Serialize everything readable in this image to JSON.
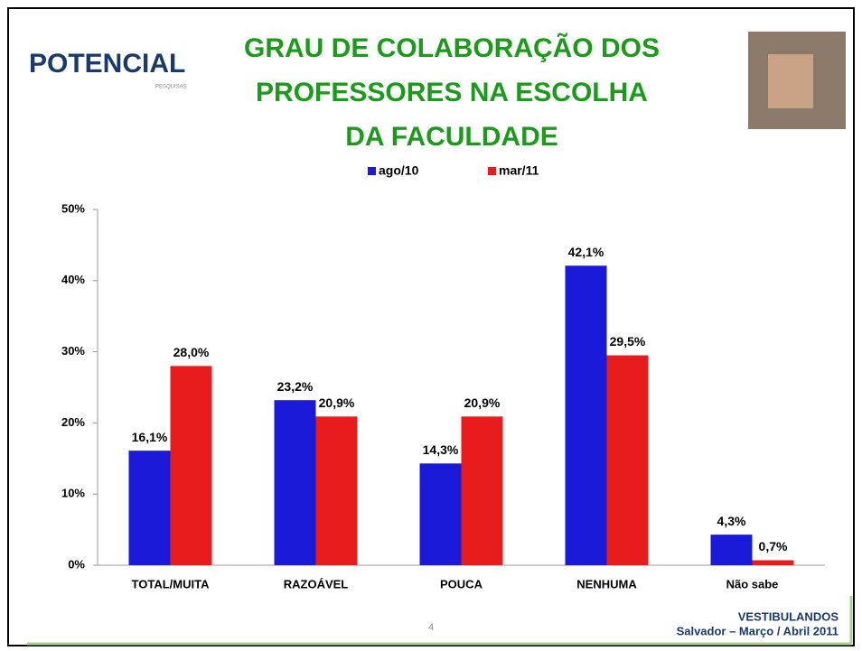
{
  "logo": {
    "name": "POTENCIAL",
    "tagline": "PESQUISAS"
  },
  "footer": {
    "page": "4",
    "survey": "VESTIBULANDOS",
    "place_date": "Salvador – Março / Abril 2011"
  },
  "chart_data": {
    "type": "bar",
    "title_lines": [
      "GRAU DE COLABORAÇÃO DOS",
      "PROFESSORES NA ESCOLHA",
      "DA FACULDADE"
    ],
    "categories": [
      "TOTAL/MUITA",
      "RAZOÁVEL",
      "POUCA",
      "NENHUMA",
      "Não sabe"
    ],
    "series": [
      {
        "name": "ago/10",
        "color": "#1a1ad8",
        "values": [
          16.1,
          23.2,
          14.3,
          42.1,
          4.3
        ],
        "value_labels": [
          "16,1%",
          "23,2%",
          "14,3%",
          "42,1%",
          "4,3%"
        ]
      },
      {
        "name": "mar/11",
        "color": "#e81c1c",
        "values": [
          28.0,
          20.9,
          20.9,
          29.5,
          0.7
        ],
        "value_labels": [
          "28,0%",
          "20,9%",
          "20,9%",
          "29,5%",
          "0,7%"
        ]
      }
    ],
    "ylim": [
      0,
      50
    ],
    "yticks": [
      {
        "value": 0,
        "label": "0%"
      },
      {
        "value": 10,
        "label": "10%"
      },
      {
        "value": 20,
        "label": "20%"
      },
      {
        "value": 30,
        "label": "30%"
      },
      {
        "value": 40,
        "label": "40%"
      },
      {
        "value": 50,
        "label": "50%"
      }
    ],
    "legend": "top"
  }
}
